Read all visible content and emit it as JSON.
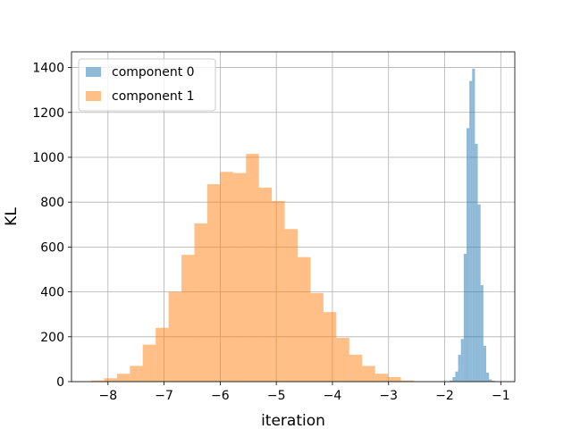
{
  "chart_data": {
    "type": "histogram",
    "xlabel": "iteration",
    "ylabel": "KL",
    "xlim": [
      -8.65,
      -0.75
    ],
    "ylim": [
      0,
      1470
    ],
    "xticks": [
      -8,
      -7,
      -6,
      -5,
      -4,
      -3,
      -2,
      -1
    ],
    "xtick_labels": [
      "−8",
      "−7",
      "−6",
      "−5",
      "−4",
      "−3",
      "−2",
      "−1"
    ],
    "yticks": [
      0,
      200,
      400,
      600,
      800,
      1000,
      1200,
      1400
    ],
    "ytick_labels": [
      "0",
      "200",
      "400",
      "600",
      "800",
      "1000",
      "1200",
      "1400"
    ],
    "grid": true,
    "legend_position": "top-left",
    "series": [
      {
        "name": "component 0",
        "color": "#1f77b4",
        "alpha": 0.5,
        "bins": [
          {
            "x0": -1.91,
            "x1": -1.86,
            "value": 5
          },
          {
            "x0": -1.86,
            "x1": -1.81,
            "value": 20
          },
          {
            "x0": -1.81,
            "x1": -1.76,
            "value": 45
          },
          {
            "x0": -1.76,
            "x1": -1.71,
            "value": 120
          },
          {
            "x0": -1.71,
            "x1": -1.66,
            "value": 190
          },
          {
            "x0": -1.66,
            "x1": -1.61,
            "value": 570
          },
          {
            "x0": -1.61,
            "x1": -1.56,
            "value": 1130
          },
          {
            "x0": -1.56,
            "x1": -1.51,
            "value": 1340
          },
          {
            "x0": -1.51,
            "x1": -1.46,
            "value": 1395
          },
          {
            "x0": -1.46,
            "x1": -1.41,
            "value": 1060
          },
          {
            "x0": -1.41,
            "x1": -1.36,
            "value": 790
          },
          {
            "x0": -1.36,
            "x1": -1.31,
            "value": 430
          },
          {
            "x0": -1.31,
            "x1": -1.26,
            "value": 160
          },
          {
            "x0": -1.26,
            "x1": -1.21,
            "value": 40
          },
          {
            "x0": -1.21,
            "x1": -1.16,
            "value": 10
          },
          {
            "x0": -1.16,
            "x1": -1.11,
            "value": 4
          }
        ]
      },
      {
        "name": "component 1",
        "color": "#ff7f0e",
        "alpha": 0.5,
        "bins": [
          {
            "x0": -8.3,
            "x1": -8.07,
            "value": 5
          },
          {
            "x0": -8.07,
            "x1": -7.84,
            "value": 15
          },
          {
            "x0": -7.84,
            "x1": -7.61,
            "value": 35
          },
          {
            "x0": -7.61,
            "x1": -7.38,
            "value": 70
          },
          {
            "x0": -7.38,
            "x1": -7.15,
            "value": 165
          },
          {
            "x0": -7.15,
            "x1": -6.92,
            "value": 240
          },
          {
            "x0": -6.92,
            "x1": -6.69,
            "value": 400
          },
          {
            "x0": -6.69,
            "x1": -6.46,
            "value": 565
          },
          {
            "x0": -6.46,
            "x1": -6.23,
            "value": 705
          },
          {
            "x0": -6.23,
            "x1": -6.0,
            "value": 880
          },
          {
            "x0": -6.0,
            "x1": -5.77,
            "value": 935
          },
          {
            "x0": -5.77,
            "x1": -5.54,
            "value": 930
          },
          {
            "x0": -5.54,
            "x1": -5.31,
            "value": 1015
          },
          {
            "x0": -5.31,
            "x1": -5.08,
            "value": 865
          },
          {
            "x0": -5.08,
            "x1": -4.85,
            "value": 805
          },
          {
            "x0": -4.85,
            "x1": -4.62,
            "value": 680
          },
          {
            "x0": -4.62,
            "x1": -4.39,
            "value": 555
          },
          {
            "x0": -4.39,
            "x1": -4.16,
            "value": 395
          },
          {
            "x0": -4.16,
            "x1": -3.93,
            "value": 310
          },
          {
            "x0": -3.93,
            "x1": -3.7,
            "value": 195
          },
          {
            "x0": -3.7,
            "x1": -3.47,
            "value": 120
          },
          {
            "x0": -3.47,
            "x1": -3.24,
            "value": 70
          },
          {
            "x0": -3.24,
            "x1": -3.01,
            "value": 35
          },
          {
            "x0": -3.01,
            "x1": -2.78,
            "value": 20
          },
          {
            "x0": -2.78,
            "x1": -2.55,
            "value": 5
          }
        ]
      }
    ]
  }
}
